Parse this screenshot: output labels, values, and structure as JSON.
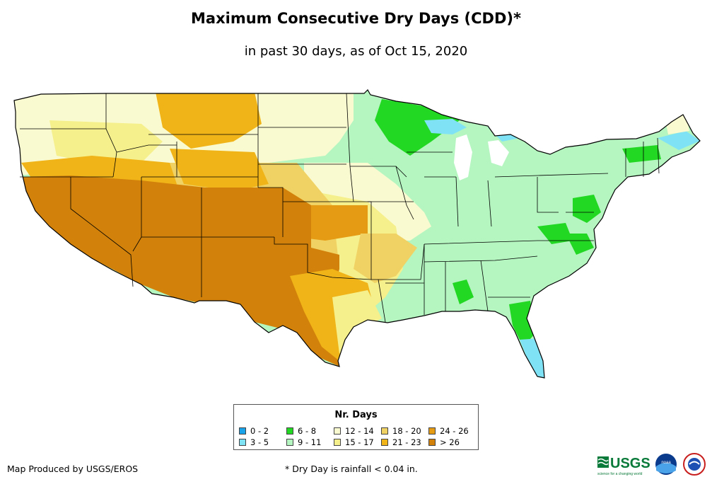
{
  "title": "Maximum Consecutive Dry Days (CDD)*",
  "subtitle": "in past 30 days, as of Oct 15, 2020",
  "legend": {
    "title": "Nr. Days",
    "items": [
      {
        "label": "0 - 2",
        "color": "#1aa3e8"
      },
      {
        "label": "3 - 5",
        "color": "#80e3f5"
      },
      {
        "label": "6 - 8",
        "color": "#22d822"
      },
      {
        "label": "9 - 11",
        "color": "#b4f5c0"
      },
      {
        "label": "12 - 14",
        "color": "#fafad0"
      },
      {
        "label": "15 - 17",
        "color": "#f5f08c"
      },
      {
        "label": "18 - 20",
        "color": "#f0d264"
      },
      {
        "label": "21 - 23",
        "color": "#f0b418"
      },
      {
        "label": "24 - 26",
        "color": "#e69b14"
      },
      {
        "label": "> 26",
        "color": "#d2820a"
      }
    ]
  },
  "credit": "Map Produced by USGS/EROS",
  "footnote": "* Dry Day is rainfall < 0.04 in.",
  "logos": {
    "usgs_text": "USGS",
    "usgs_tagline": "science for a changing world",
    "noaa_text": "noaa"
  }
}
